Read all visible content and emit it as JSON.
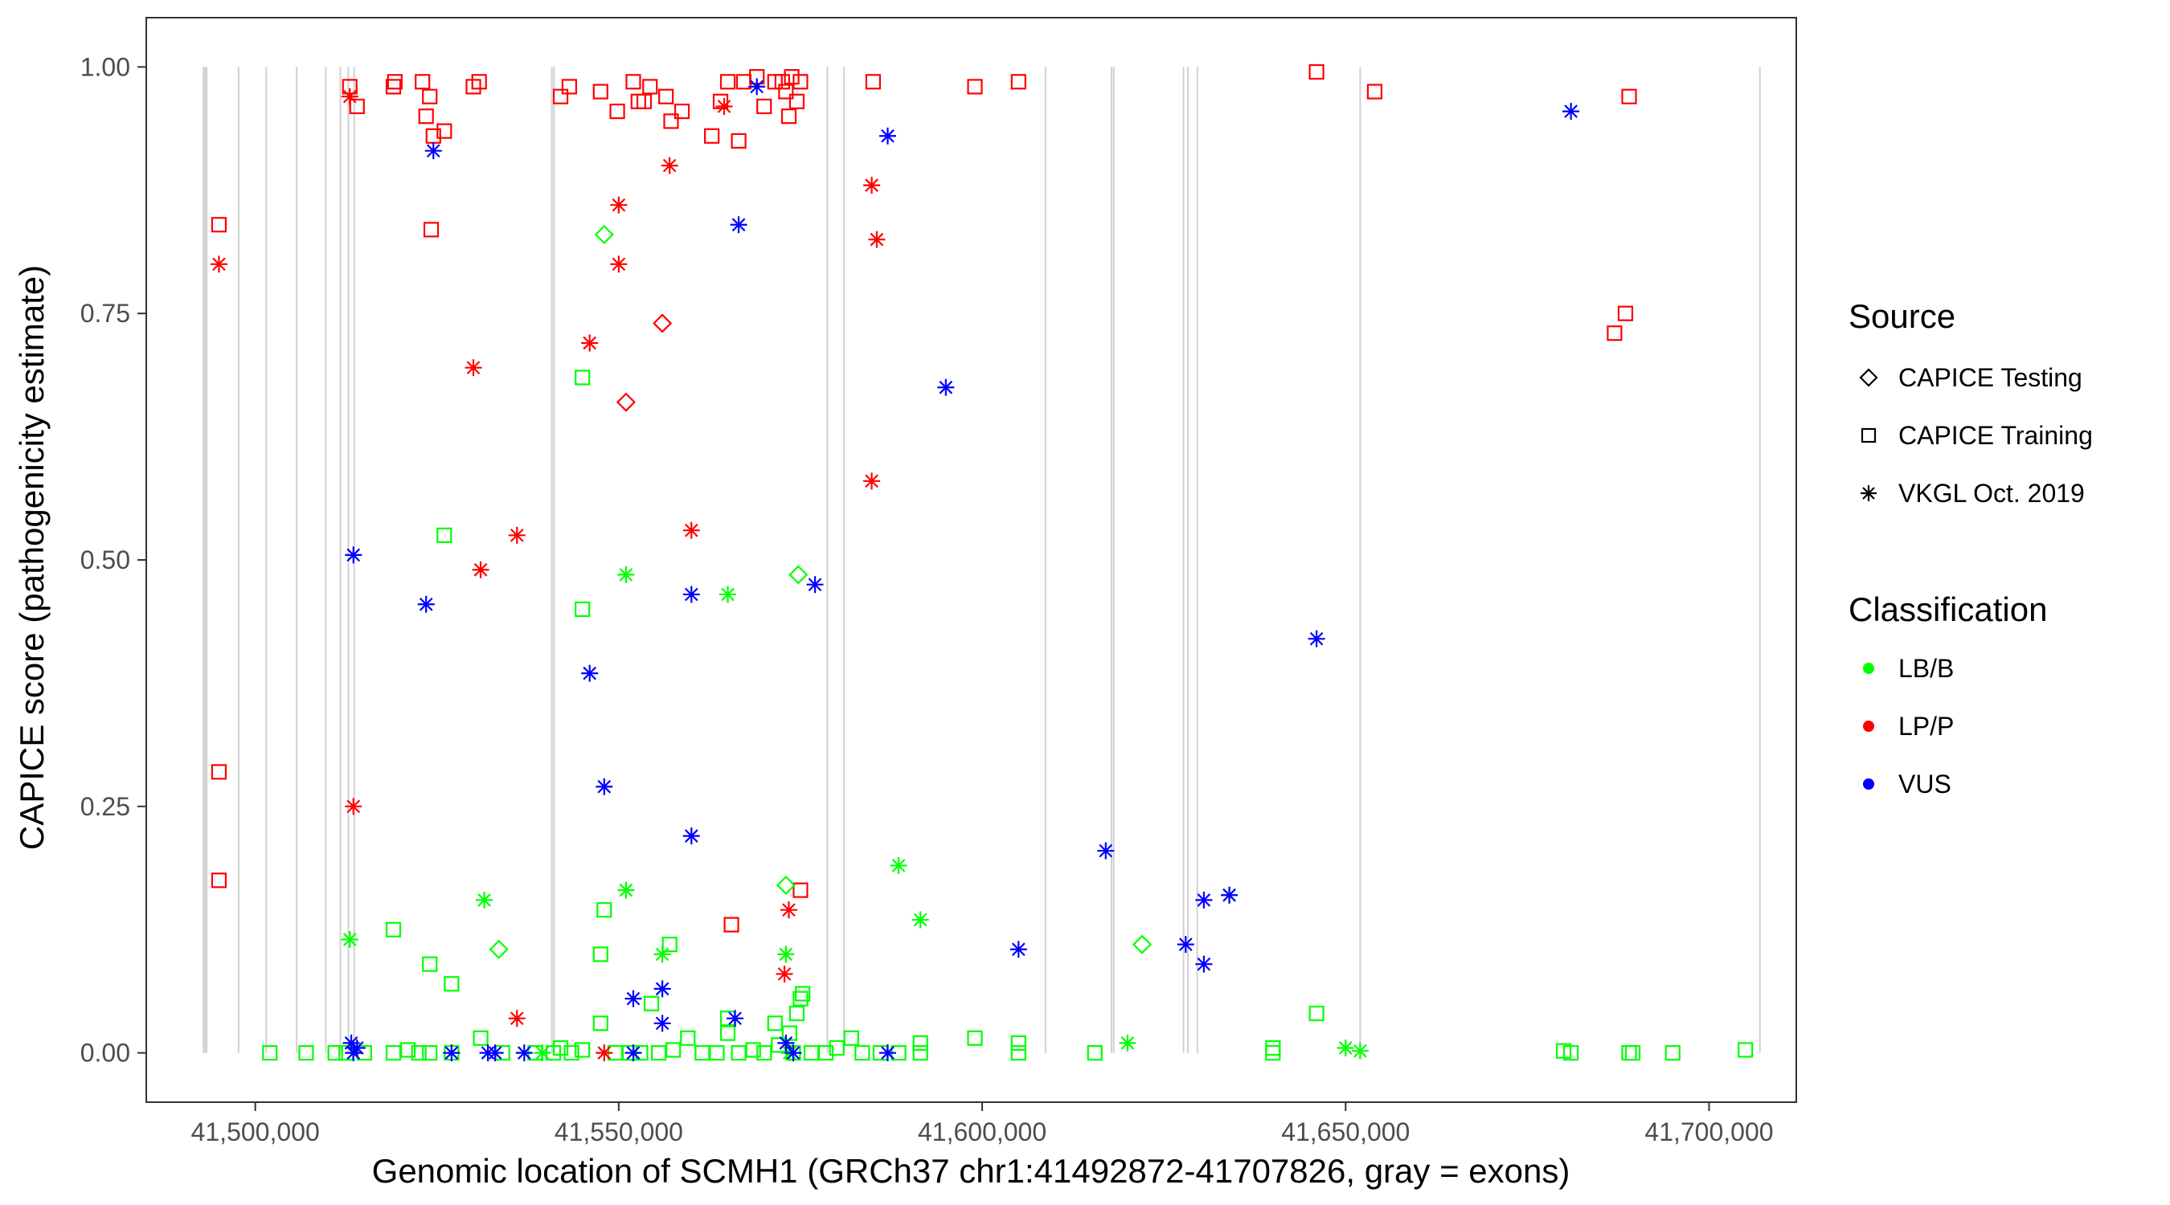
{
  "chart_data": {
    "type": "scatter",
    "title": "",
    "xlabel": "Genomic location of SCMH1 (GRCh37 chr1:41492872-41707826, gray = exons)",
    "ylabel": "CAPICE score (pathogenicity estimate)",
    "xlim": [
      41485000,
      41712000
    ],
    "ylim": [
      -0.05,
      1.05
    ],
    "x_ticks": [
      41500000,
      41550000,
      41600000,
      41650000,
      41700000
    ],
    "x_tick_labels": [
      "41,500,000",
      "41,550,000",
      "41,600,000",
      "41,650,000",
      "41,700,000"
    ],
    "y_ticks": [
      0,
      0.25,
      0.5,
      0.75,
      1.0
    ],
    "y_tick_labels": [
      "0.00",
      "0.25",
      "0.50",
      "0.75",
      "1.00"
    ],
    "grid": false,
    "legend_position": "right",
    "exons": [
      41492872,
      41493100,
      41493300,
      41497700,
      41501500,
      41505700,
      41509700,
      41511700,
      41512800,
      41513600,
      41540800,
      41541100,
      41578700,
      41581000,
      41608700,
      41617800,
      41618100,
      41627700,
      41628300,
      41629600,
      41652000,
      41707000
    ],
    "sources": [
      {
        "name": "CAPICE Testing",
        "shape": "diamond"
      },
      {
        "name": "CAPICE Training",
        "shape": "square"
      },
      {
        "name": "VKGL Oct. 2019",
        "shape": "asterisk"
      }
    ],
    "classifications": [
      {
        "name": "LB/B",
        "color": "#00ff00"
      },
      {
        "name": "LP/P",
        "color": "#ff0000"
      },
      {
        "name": "VUS",
        "color": "#0000ff"
      }
    ],
    "series": [
      {
        "source": "CAPICE Training",
        "class": "LP/P",
        "points": [
          [
            41513000,
            0.98
          ],
          [
            41514000,
            0.96
          ],
          [
            41519000,
            0.98
          ],
          [
            41519200,
            0.985
          ],
          [
            41523000,
            0.985
          ],
          [
            41523500,
            0.95
          ],
          [
            41524000,
            0.97
          ],
          [
            41524500,
            0.93
          ],
          [
            41526000,
            0.935
          ],
          [
            41530000,
            0.98
          ],
          [
            41530800,
            0.985
          ],
          [
            41542000,
            0.97
          ],
          [
            41543200,
            0.98
          ],
          [
            41547500,
            0.975
          ],
          [
            41549800,
            0.955
          ],
          [
            41552000,
            0.985
          ],
          [
            41552700,
            0.965
          ],
          [
            41553500,
            0.965
          ],
          [
            41554300,
            0.98
          ],
          [
            41556500,
            0.97
          ],
          [
            41557200,
            0.945
          ],
          [
            41558700,
            0.955
          ],
          [
            41562800,
            0.93
          ],
          [
            41564000,
            0.965
          ],
          [
            41565000,
            0.985
          ],
          [
            41566500,
            0.925
          ],
          [
            41567200,
            0.985
          ],
          [
            41569000,
            0.99
          ],
          [
            41570000,
            0.96
          ],
          [
            41571500,
            0.985
          ],
          [
            41572500,
            0.985
          ],
          [
            41573000,
            0.975
          ],
          [
            41573400,
            0.95
          ],
          [
            41573800,
            0.99
          ],
          [
            41574500,
            0.965
          ],
          [
            41575000,
            0.985
          ],
          [
            41585000,
            0.985
          ],
          [
            41599000,
            0.98
          ],
          [
            41605000,
            0.985
          ],
          [
            41646000,
            0.995
          ],
          [
            41654000,
            0.975
          ],
          [
            41689000,
            0.97
          ],
          [
            41524200,
            0.835
          ],
          [
            41495000,
            0.84
          ],
          [
            41687000,
            0.73
          ],
          [
            41688500,
            0.75
          ],
          [
            41495000,
            0.285
          ],
          [
            41495000,
            0.175
          ],
          [
            41565500,
            0.13
          ],
          [
            41575000,
            0.165
          ]
        ]
      },
      {
        "source": "CAPICE Testing",
        "class": "LP/P",
        "points": [
          [
            41556000,
            0.74
          ],
          [
            41551000,
            0.66
          ]
        ]
      },
      {
        "source": "VKGL Oct. 2019",
        "class": "LP/P",
        "points": [
          [
            41513000,
            0.97
          ],
          [
            41564500,
            0.96
          ],
          [
            41557000,
            0.9
          ],
          [
            41550000,
            0.86
          ],
          [
            41584800,
            0.88
          ],
          [
            41585500,
            0.825
          ],
          [
            41550000,
            0.8
          ],
          [
            41495000,
            0.8
          ],
          [
            41546000,
            0.72
          ],
          [
            41530000,
            0.695
          ],
          [
            41584800,
            0.58
          ],
          [
            41560000,
            0.53
          ],
          [
            41536000,
            0.525
          ],
          [
            41531000,
            0.49
          ],
          [
            41513500,
            0.25
          ],
          [
            41573400,
            0.145
          ],
          [
            41572800,
            0.08
          ],
          [
            41536000,
            0.035
          ],
          [
            41548000,
            0.0
          ]
        ]
      },
      {
        "source": "CAPICE Training",
        "class": "LB/B",
        "points": [
          [
            41545000,
            0.685
          ],
          [
            41526000,
            0.525
          ],
          [
            41545000,
            0.45
          ],
          [
            41519000,
            0.125
          ],
          [
            41548000,
            0.145
          ],
          [
            41524000,
            0.09
          ],
          [
            41557000,
            0.11
          ],
          [
            41527000,
            0.07
          ],
          [
            41547500,
            0.1
          ],
          [
            41554500,
            0.05
          ],
          [
            41565000,
            0.035
          ],
          [
            41571500,
            0.03
          ],
          [
            41573500,
            0.02
          ],
          [
            41574500,
            0.04
          ],
          [
            41575000,
            0.055
          ],
          [
            41575300,
            0.06
          ],
          [
            41599000,
            0.015
          ],
          [
            41605000,
            0.01
          ],
          [
            41640000,
            0.005
          ],
          [
            41646000,
            0.04
          ],
          [
            41680000,
            0.002
          ],
          [
            41689500,
            0.0
          ],
          [
            41695000,
            0.0
          ],
          [
            41705000,
            0.003
          ],
          [
            41502000,
            0.0
          ],
          [
            41507000,
            0.0
          ],
          [
            41511000,
            0.0
          ],
          [
            41512500,
            0.0
          ],
          [
            41515000,
            0.0
          ],
          [
            41519000,
            0.0
          ],
          [
            41521000,
            0.003
          ],
          [
            41522500,
            0.0
          ],
          [
            41524000,
            0.0
          ],
          [
            41527000,
            0.0
          ],
          [
            41531000,
            0.015
          ],
          [
            41534000,
            0.0
          ],
          [
            41538500,
            0.0
          ],
          [
            41541000,
            0.0
          ],
          [
            41542000,
            0.005
          ],
          [
            41543500,
            0.0
          ],
          [
            41545000,
            0.003
          ],
          [
            41547500,
            0.03
          ],
          [
            41549500,
            0.0
          ],
          [
            41551500,
            0.0
          ],
          [
            41553000,
            0.0
          ],
          [
            41555500,
            0.0
          ],
          [
            41557500,
            0.003
          ],
          [
            41559500,
            0.015
          ],
          [
            41561500,
            0.0
          ],
          [
            41563500,
            0.0
          ],
          [
            41565000,
            0.02
          ],
          [
            41566500,
            0.0
          ],
          [
            41568500,
            0.003
          ],
          [
            41570000,
            0.0
          ],
          [
            41572000,
            0.008
          ],
          [
            41574000,
            0.0
          ],
          [
            41576500,
            0.0
          ],
          [
            41578500,
            0.0
          ],
          [
            41580000,
            0.005
          ],
          [
            41582000,
            0.015
          ],
          [
            41583500,
            0.0
          ],
          [
            41586000,
            0.0
          ],
          [
            41588500,
            0.0
          ],
          [
            41591500,
            0.01
          ],
          [
            41591500,
            0.0
          ],
          [
            41605000,
            0.0
          ],
          [
            41615500,
            0.0
          ],
          [
            41640000,
            0.0
          ],
          [
            41681000,
            0.0
          ],
          [
            41689000,
            0.0
          ]
        ]
      },
      {
        "source": "CAPICE Testing",
        "class": "LB/B",
        "points": [
          [
            41548000,
            0.83
          ],
          [
            41574700,
            0.485
          ],
          [
            41573000,
            0.17
          ],
          [
            41533500,
            0.105
          ],
          [
            41622000,
            0.11
          ]
        ]
      },
      {
        "source": "VKGL Oct. 2019",
        "class": "LB/B",
        "points": [
          [
            41551000,
            0.485
          ],
          [
            41565000,
            0.465
          ],
          [
            41531500,
            0.155
          ],
          [
            41551000,
            0.165
          ],
          [
            41588500,
            0.19
          ],
          [
            41634000,
            0.16
          ],
          [
            41591500,
            0.135
          ],
          [
            41513000,
            0.115
          ],
          [
            41556000,
            0.1
          ],
          [
            41573000,
            0.1
          ],
          [
            41620000,
            0.01
          ],
          [
            41650000,
            0.005
          ],
          [
            41652000,
            0.002
          ],
          [
            41539500,
            0.0
          ],
          [
            41573500,
            0.0
          ]
        ]
      },
      {
        "source": "VKGL Oct. 2019",
        "class": "VUS",
        "points": [
          [
            41681000,
            0.955
          ],
          [
            41587000,
            0.93
          ],
          [
            41524500,
            0.915
          ],
          [
            41566500,
            0.84
          ],
          [
            41595000,
            0.675
          ],
          [
            41513500,
            0.505
          ],
          [
            41577000,
            0.475
          ],
          [
            41560000,
            0.465
          ],
          [
            41523500,
            0.455
          ],
          [
            41646000,
            0.42
          ],
          [
            41546000,
            0.385
          ],
          [
            41548000,
            0.27
          ],
          [
            41560000,
            0.22
          ],
          [
            41617000,
            0.205
          ],
          [
            41630500,
            0.155
          ],
          [
            41634000,
            0.16
          ],
          [
            41605000,
            0.105
          ],
          [
            41628000,
            0.11
          ],
          [
            41630500,
            0.09
          ],
          [
            41556000,
            0.065
          ],
          [
            41552000,
            0.055
          ],
          [
            41566000,
            0.035
          ],
          [
            41556000,
            0.03
          ],
          [
            41569000,
            0.98
          ],
          [
            41513200,
            0.01
          ],
          [
            41514000,
            0.005
          ],
          [
            41513500,
            0.0
          ],
          [
            41527000,
            0.0
          ],
          [
            41532000,
            0.0
          ],
          [
            41533000,
            0.0
          ],
          [
            41537000,
            0.0
          ],
          [
            41552000,
            0.0
          ],
          [
            41573000,
            0.01
          ],
          [
            41574000,
            0.0
          ],
          [
            41587000,
            0.0
          ]
        ]
      }
    ]
  },
  "legend": {
    "source_title": "Source",
    "source_items": [
      {
        "label": "CAPICE Testing",
        "shape": "diamond"
      },
      {
        "label": "CAPICE Training",
        "shape": "square"
      },
      {
        "label": "VKGL Oct. 2019",
        "shape": "asterisk"
      }
    ],
    "class_title": "Classification",
    "class_items": [
      {
        "label": "LB/B",
        "color": "#00ff00"
      },
      {
        "label": "LP/P",
        "color": "#ff0000"
      },
      {
        "label": "VUS",
        "color": "#0000ff"
      }
    ]
  }
}
